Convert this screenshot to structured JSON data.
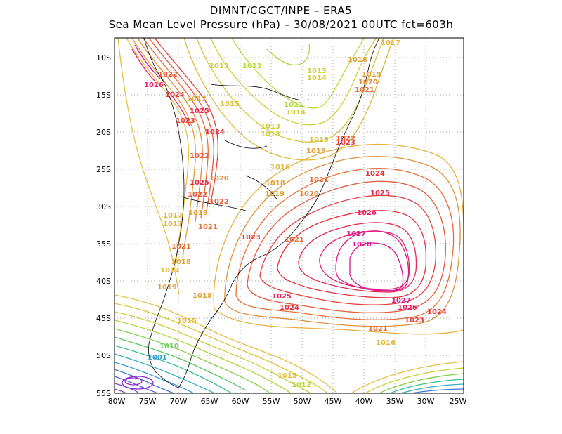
{
  "header": {
    "line1": "DIMNT/CGCT/INPE –  ERA5",
    "line2": "Sea Mean Level Pressure (hPa) – 30/08/2021 00UTC fct=603h"
  },
  "axes": {
    "lat_labels": [
      "10S",
      "15S",
      "20S",
      "25S",
      "30S",
      "35S",
      "40S",
      "45S",
      "50S",
      "55S"
    ],
    "lon_labels": [
      "80W",
      "75W",
      "70W",
      "65W",
      "60W",
      "55W",
      "50W",
      "45W",
      "40W",
      "35W",
      "30W",
      "25W"
    ]
  },
  "contour_labels": [
    {
      "text": "1017",
      "color": "#e3b43a"
    },
    {
      "text": "1018",
      "color": "#e0a23a"
    },
    {
      "text": "1019",
      "color": "#e0a23a"
    },
    {
      "text": "1020",
      "color": "#e58a36"
    },
    {
      "text": "1021",
      "color": "#e86e36"
    },
    {
      "text": "1022",
      "color": "#e8583a"
    },
    {
      "text": "1023",
      "color": "#e83e3e"
    },
    {
      "text": "1024",
      "color": "#e8303e"
    },
    {
      "text": "1025",
      "color": "#e82850"
    },
    {
      "text": "1026",
      "color": "#e82066"
    },
    {
      "text": "1027",
      "color": "#e01884"
    },
    {
      "text": "1028",
      "color": "#d81896"
    },
    {
      "text": "1013",
      "color": "#cfcf3a"
    },
    {
      "text": "1012",
      "color": "#b8d83a"
    },
    {
      "text": "1011",
      "color": "#a8d83a"
    },
    {
      "text": "1014",
      "color": "#d8c83a"
    },
    {
      "text": "1015",
      "color": "#dcc03a"
    },
    {
      "text": "1016",
      "color": "#e0b83a"
    },
    {
      "text": "1010",
      "color": "#6ad060"
    },
    {
      "text": "1001",
      "color": "#3aa0d8"
    }
  ],
  "colors": {
    "high": "#d81896",
    "mid": "#e8583a",
    "low_north": "#b8d83a",
    "low_south": "#8a2ad8"
  }
}
